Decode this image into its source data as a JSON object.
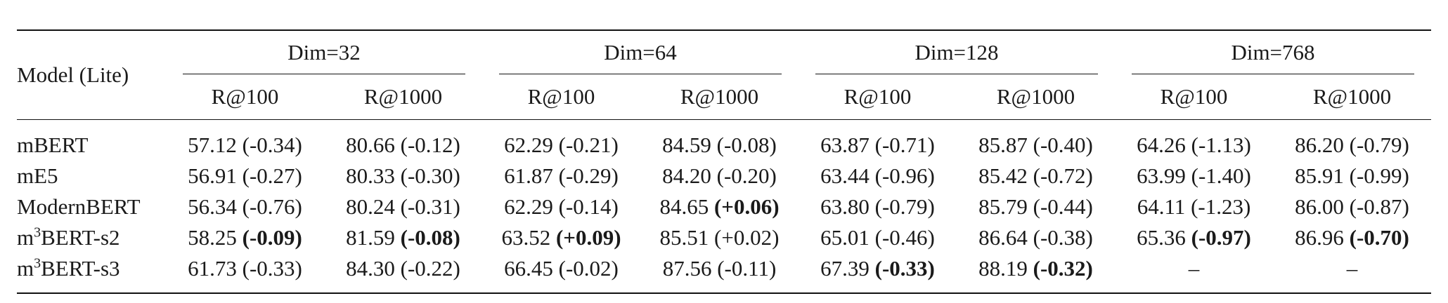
{
  "table": {
    "model_header": "Model (Lite)",
    "groups": [
      "Dim=32",
      "Dim=64",
      "Dim=128",
      "Dim=768"
    ],
    "subheaders": [
      "R@100",
      "R@1000",
      "R@100",
      "R@1000",
      "R@100",
      "R@1000",
      "R@100",
      "R@1000"
    ],
    "rows": [
      {
        "model": "mBERT",
        "cells": [
          {
            "v": "57.12",
            "d": "(-0.34)"
          },
          {
            "v": "80.66",
            "d": "(-0.12)"
          },
          {
            "v": "62.29",
            "d": "(-0.21)"
          },
          {
            "v": "84.59",
            "d": "(-0.08)"
          },
          {
            "v": "63.87",
            "d": "(-0.71)"
          },
          {
            "v": "85.87",
            "d": "(-0.40)"
          },
          {
            "v": "64.26",
            "d": "(-1.13)"
          },
          {
            "v": "86.20",
            "d": "(-0.79)"
          }
        ]
      },
      {
        "model": "mE5",
        "cells": [
          {
            "v": "56.91",
            "d": "(-0.27)"
          },
          {
            "v": "80.33",
            "d": "(-0.30)"
          },
          {
            "v": "61.87",
            "d": "(-0.29)"
          },
          {
            "v": "84.20",
            "d": "(-0.20)"
          },
          {
            "v": "63.44",
            "d": "(-0.96)"
          },
          {
            "v": "85.42",
            "d": "(-0.72)"
          },
          {
            "v": "63.99",
            "d": "(-1.40)"
          },
          {
            "v": "85.91",
            "d": "(-0.99)"
          }
        ]
      },
      {
        "model": "ModernBERT",
        "cells": [
          {
            "v": "56.34",
            "d": "(-0.76)"
          },
          {
            "v": "80.24",
            "d": "(-0.31)"
          },
          {
            "v": "62.29",
            "d": "(-0.14)"
          },
          {
            "v": "84.65",
            "d": "(+0.06)",
            "bold": true
          },
          {
            "v": "63.80",
            "d": "(-0.79)"
          },
          {
            "v": "85.79",
            "d": "(-0.44)"
          },
          {
            "v": "64.11",
            "d": "(-1.23)"
          },
          {
            "v": "86.00",
            "d": "(-0.87)"
          }
        ]
      },
      {
        "model_prefix": "m",
        "model_sup": "3",
        "model_suffix": "BERT-s2",
        "cells": [
          {
            "v": "58.25",
            "d": "(-0.09)",
            "bold": true
          },
          {
            "v": "81.59",
            "d": "(-0.08)",
            "bold": true
          },
          {
            "v": "63.52",
            "d": "(+0.09)",
            "bold": true
          },
          {
            "v": "85.51",
            "d": "(+0.02)"
          },
          {
            "v": "65.01",
            "d": "(-0.46)"
          },
          {
            "v": "86.64",
            "d": "(-0.38)"
          },
          {
            "v": "65.36",
            "d": "(-0.97)",
            "bold": true
          },
          {
            "v": "86.96",
            "d": "(-0.70)",
            "bold": true
          }
        ]
      },
      {
        "model_prefix": "m",
        "model_sup": "3",
        "model_suffix": "BERT-s3",
        "cells": [
          {
            "v": "61.73",
            "d": "(-0.33)"
          },
          {
            "v": "84.30",
            "d": "(-0.22)"
          },
          {
            "v": "66.45",
            "d": "(-0.02)"
          },
          {
            "v": "87.56",
            "d": "(-0.11)"
          },
          {
            "v": "67.39",
            "d": "(-0.33)",
            "bold": true
          },
          {
            "v": "88.19",
            "d": "(-0.32)",
            "bold": true
          },
          {
            "dash": "–"
          },
          {
            "dash": "–"
          }
        ]
      }
    ]
  }
}
